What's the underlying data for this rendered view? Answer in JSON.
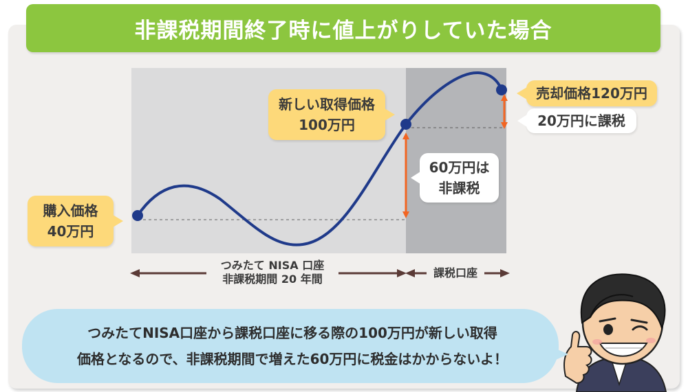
{
  "title": "非課税期間終了時に値上がりしていた場合",
  "callouts": {
    "purchase": [
      "購入価格",
      "40万円"
    ],
    "new_acquisition": [
      "新しい取得価格",
      "100万円"
    ],
    "sale": "売却価格120万円",
    "taxed": "20万円に課税",
    "tax_free": [
      "60万円は",
      "非課税"
    ]
  },
  "periods": {
    "nisa": [
      "つみたて NISA 口座",
      "非課税期間 20 年間"
    ],
    "taxable": "課税口座"
  },
  "speech": {
    "line1": "つみたてNISA口座から課税口座に移る際の100万円が新しい取得",
    "line2": "価格となるので、非課税期間で増えた60万円に税金はかからないよ！"
  },
  "colors": {
    "title_bar": "#8cc63f",
    "curve": "#1f3a8a",
    "arrow_orange": "#f26522",
    "period_arrow": "#5a3a36",
    "callout_yellow": "#fdd97a",
    "speech_blue": "#bfe3f2",
    "zone_nisa": "#dbdbdc",
    "zone_taxable": "#b4b5b8"
  },
  "icons": {
    "character": "thumbs-up-man-icon"
  }
}
